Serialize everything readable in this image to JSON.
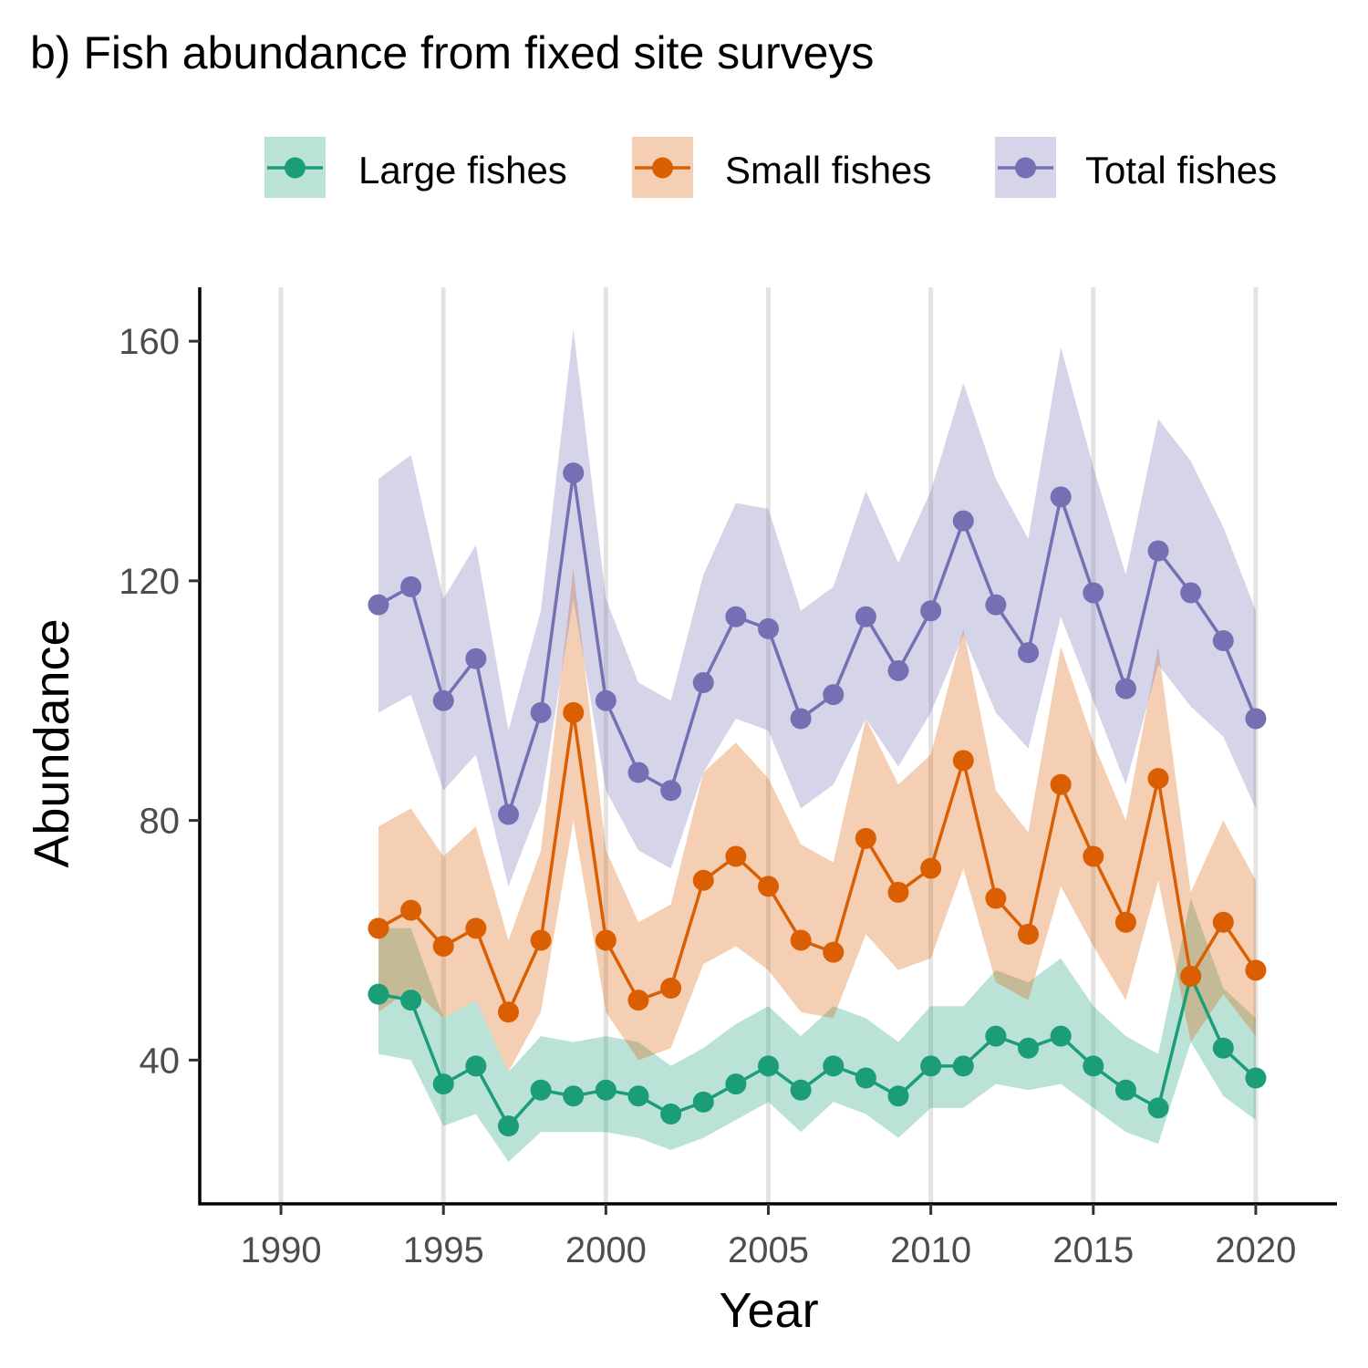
{
  "title": "b) Fish abundance from fixed site surveys",
  "chart_data": {
    "type": "line",
    "title": "b) Fish abundance from fixed site surveys",
    "xlabel": "Year",
    "ylabel": "Abundance",
    "xlim": [
      1987.5,
      2022.5
    ],
    "ylim": [
      16,
      169
    ],
    "x_ticks": [
      1990,
      1995,
      2000,
      2005,
      2010,
      2015,
      2020
    ],
    "y_ticks": [
      40,
      80,
      120,
      160
    ],
    "grid": "vertical major lines only",
    "legend_position": "top",
    "x": [
      1993,
      1994,
      1995,
      1996,
      1997,
      1998,
      1999,
      2000,
      2001,
      2002,
      2003,
      2004,
      2005,
      2006,
      2007,
      2008,
      2009,
      2010,
      2011,
      2012,
      2013,
      2014,
      2015,
      2016,
      2017,
      2018,
      2019,
      2020
    ],
    "series": [
      {
        "name": "Large fishes",
        "color": "#1b9e77",
        "values": [
          51,
          50,
          36,
          39,
          29,
          35,
          34,
          35,
          34,
          31,
          33,
          36,
          39,
          35,
          39,
          37,
          34,
          39,
          39,
          44,
          42,
          44,
          39,
          35,
          32,
          54,
          42,
          37
        ],
        "lower": [
          41,
          40,
          29,
          31,
          23,
          28,
          28,
          28,
          27,
          25,
          27,
          30,
          33,
          28,
          33,
          31,
          27,
          32,
          32,
          36,
          35,
          36,
          32,
          28,
          26,
          43,
          34,
          30
        ],
        "upper": [
          62,
          62,
          47,
          50,
          38,
          44,
          43,
          44,
          43,
          39,
          42,
          46,
          49,
          44,
          49,
          47,
          43,
          49,
          49,
          55,
          53,
          57,
          49,
          44,
          41,
          67,
          52,
          47
        ]
      },
      {
        "name": "Small fishes",
        "color": "#d95f02",
        "values": [
          62,
          65,
          59,
          62,
          48,
          60,
          98,
          60,
          50,
          52,
          70,
          74,
          69,
          60,
          58,
          77,
          68,
          72,
          90,
          67,
          61,
          86,
          74,
          63,
          87,
          54,
          63,
          55
        ],
        "lower": [
          48,
          52,
          47,
          50,
          38,
          48,
          80,
          48,
          40,
          42,
          56,
          59,
          55,
          48,
          47,
          61,
          55,
          57,
          72,
          53,
          50,
          69,
          59,
          50,
          70,
          43,
          51,
          44
        ],
        "upper": [
          79,
          82,
          74,
          79,
          60,
          75,
          122,
          75,
          63,
          66,
          88,
          93,
          87,
          76,
          73,
          97,
          86,
          91,
          112,
          85,
          78,
          109,
          93,
          80,
          109,
          68,
          80,
          70
        ]
      },
      {
        "name": "Total fishes",
        "color": "#7570b3",
        "values": [
          116,
          119,
          100,
          107,
          81,
          98,
          138,
          100,
          88,
          85,
          103,
          114,
          112,
          97,
          101,
          114,
          105,
          115,
          130,
          116,
          108,
          134,
          118,
          102,
          125,
          118,
          110,
          97
        ],
        "lower": [
          98,
          101,
          85,
          91,
          69,
          83,
          117,
          85,
          75,
          72,
          88,
          97,
          95,
          82,
          86,
          97,
          89,
          98,
          111,
          98,
          92,
          114,
          100,
          86,
          106,
          99,
          94,
          82
        ],
        "upper": [
          137,
          141,
          117,
          126,
          95,
          115,
          162,
          117,
          103,
          100,
          121,
          133,
          132,
          115,
          119,
          135,
          123,
          135,
          153,
          137,
          127,
          159,
          139,
          121,
          147,
          140,
          129,
          115
        ]
      }
    ]
  }
}
